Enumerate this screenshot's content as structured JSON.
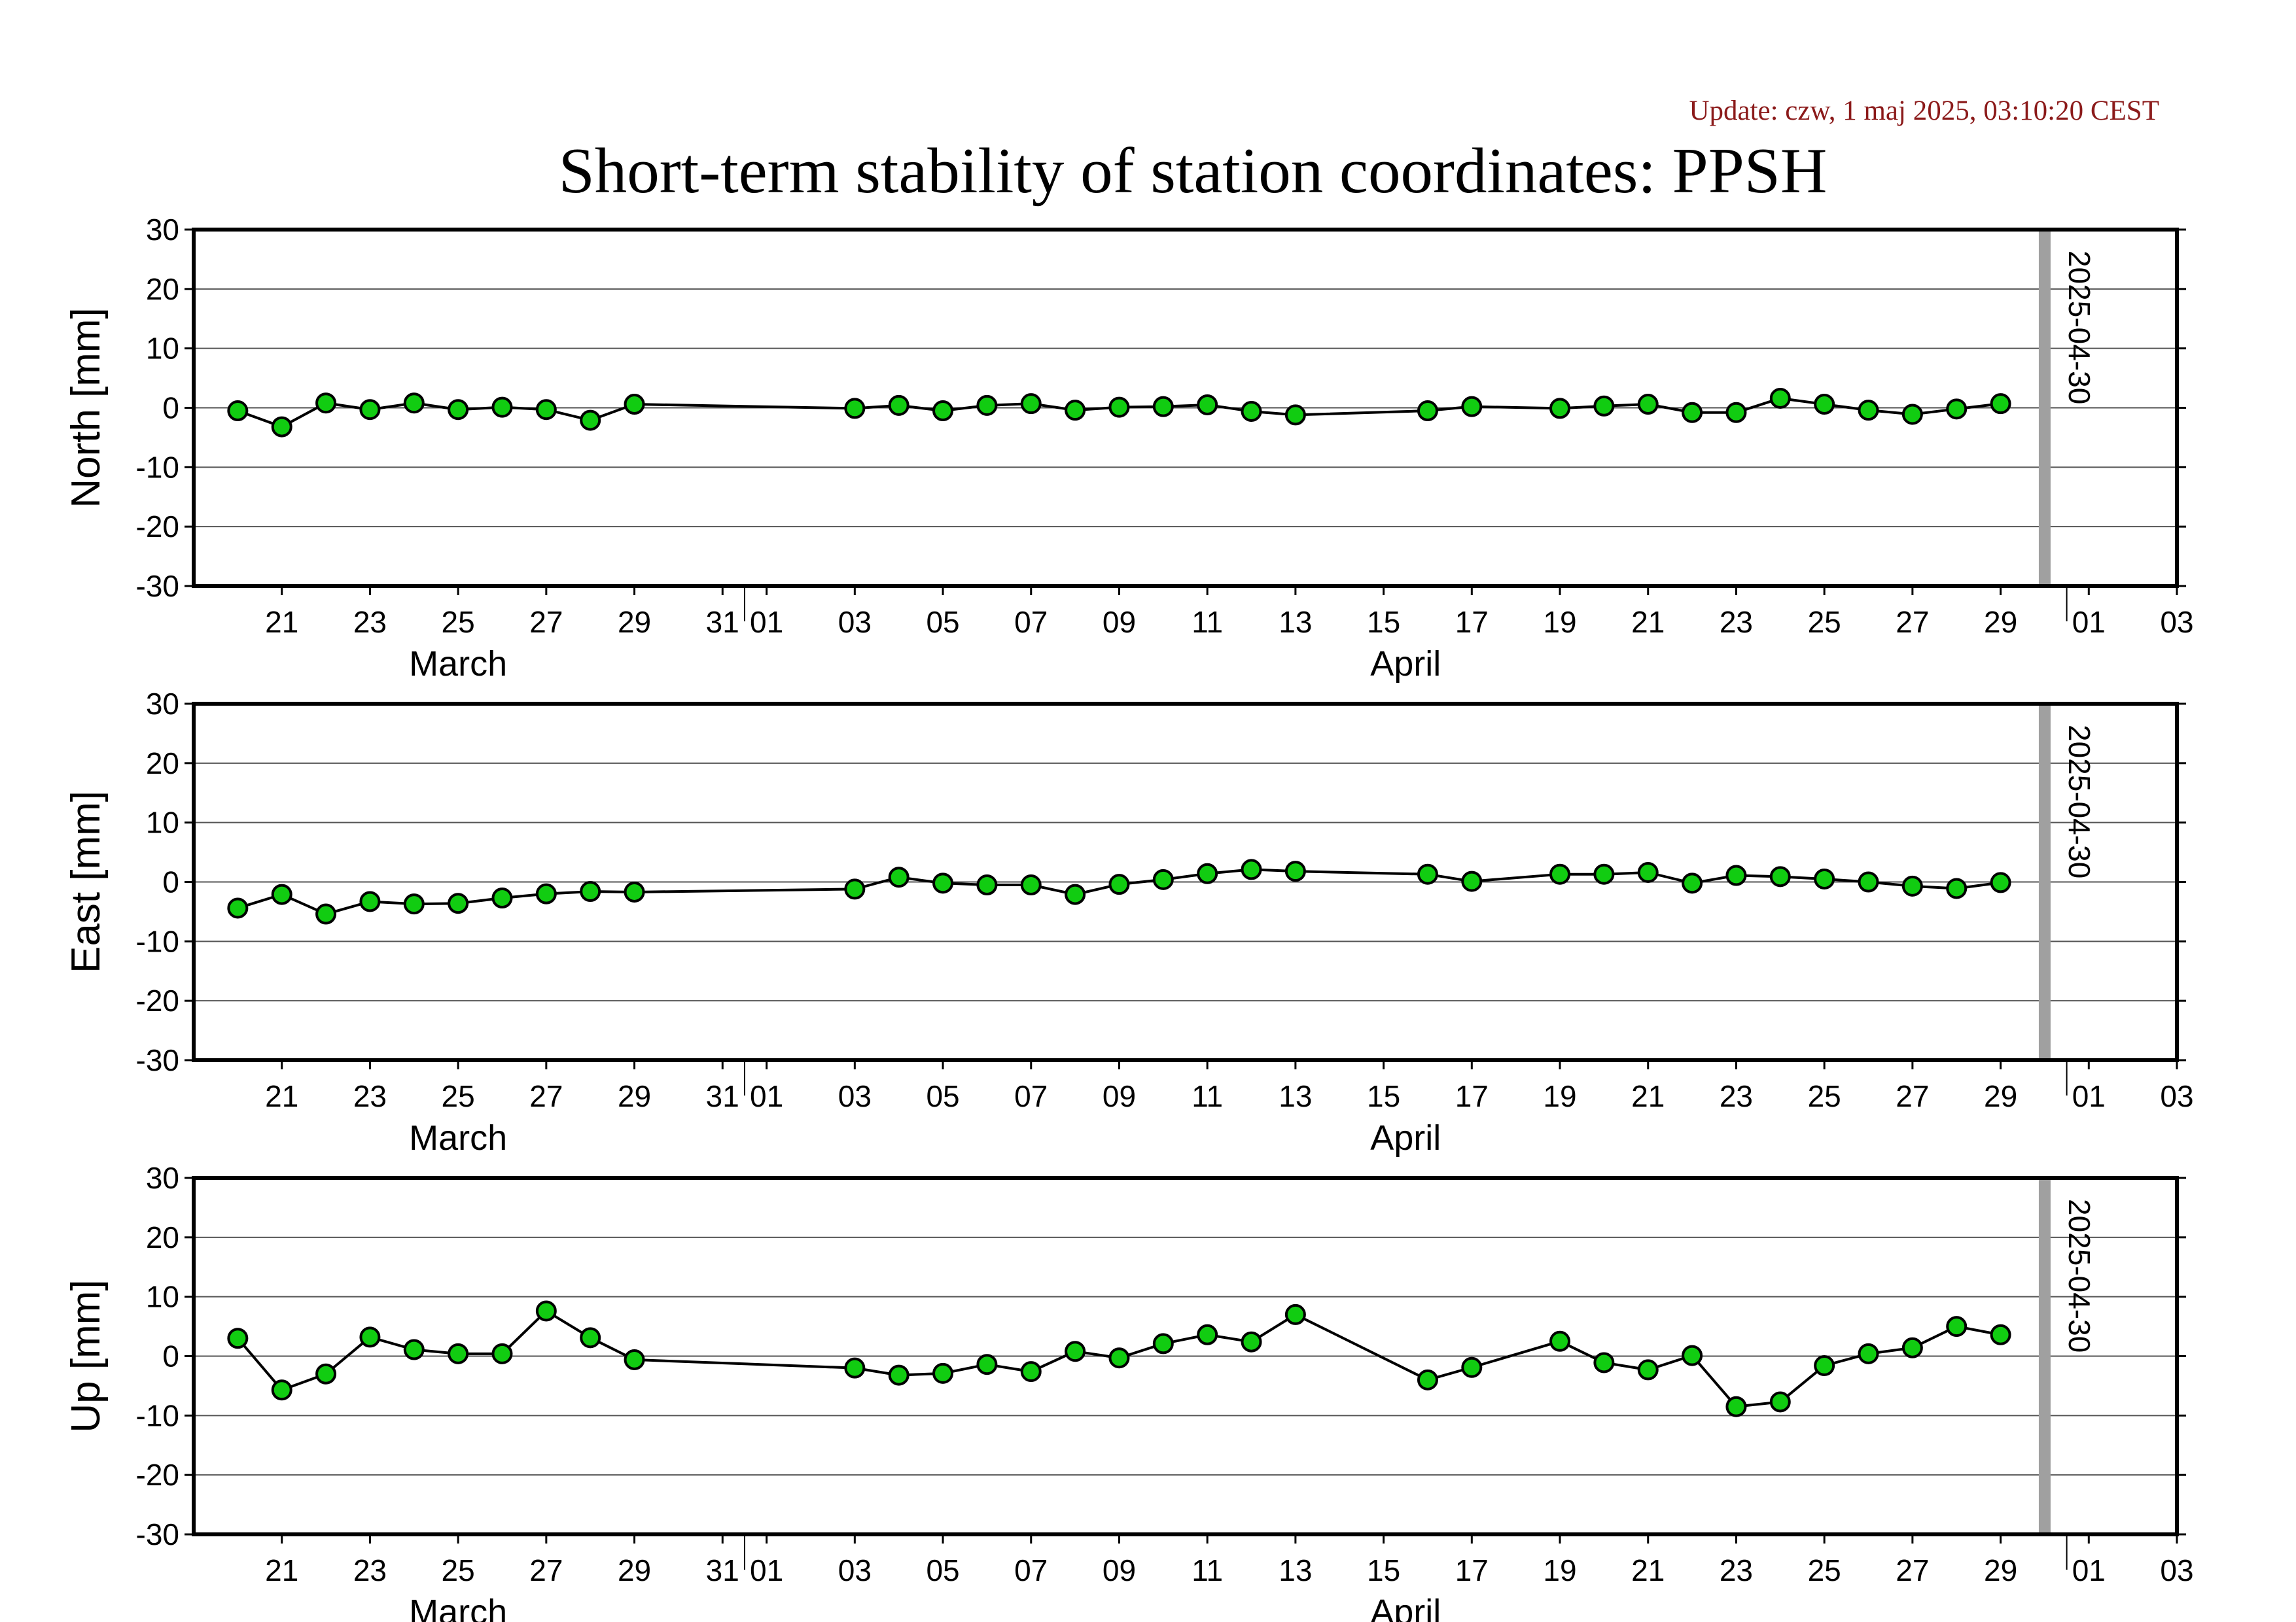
{
  "update_text": "Update: czw, 1 maj 2025, 03:10:20 CEST",
  "update_color": "#8b1a1a",
  "title": "Short-term stability of station coordinates: PPSH",
  "colors": {
    "marker_fill": "#11cc11",
    "marker_stroke": "#000000",
    "line": "#000000",
    "grid": "#555555",
    "marker_line": "#a0a0a0"
  },
  "chart_data": [
    {
      "type": "line",
      "ylabel": "North [mm]",
      "ylim": [
        -30,
        30
      ],
      "yticks": [
        "30",
        "20",
        "10",
        "0",
        "-10",
        "-20",
        "-30"
      ],
      "xlim": [
        "2025-03-19T12:00",
        "2025-05-03T12:00"
      ],
      "xticks": [
        "21",
        "23",
        "25",
        "27",
        "29",
        "31",
        "01",
        "03",
        "05",
        "07",
        "09",
        "11",
        "13",
        "15",
        "17",
        "19",
        "21",
        "23",
        "25",
        "27",
        "29",
        "01",
        "03"
      ],
      "months": [
        "March",
        "April"
      ],
      "marker_line": {
        "date": "2025-04-30",
        "label": "2025-04-30"
      },
      "grid": true,
      "series": [
        {
          "x": [
            "2025-03-20",
            "2025-03-21",
            "2025-03-22",
            "2025-03-23",
            "2025-03-24",
            "2025-03-25",
            "2025-03-26",
            "2025-03-27",
            "2025-03-28",
            "2025-03-29",
            "2025-04-03",
            "2025-04-04",
            "2025-04-05",
            "2025-04-06",
            "2025-04-07",
            "2025-04-08",
            "2025-04-09",
            "2025-04-10",
            "2025-04-11",
            "2025-04-12",
            "2025-04-13",
            "2025-04-16",
            "2025-04-17",
            "2025-04-19",
            "2025-04-20",
            "2025-04-21",
            "2025-04-22",
            "2025-04-23",
            "2025-04-24",
            "2025-04-25",
            "2025-04-26",
            "2025-04-27",
            "2025-04-28",
            "2025-04-29"
          ],
          "y": [
            -0.5,
            -3.2,
            0.8,
            -0.3,
            0.8,
            -0.3,
            0.1,
            -0.3,
            -2.1,
            0.6,
            -0.1,
            0.4,
            -0.5,
            0.4,
            0.7,
            -0.4,
            0.1,
            0.2,
            0.5,
            -0.6,
            -1.2,
            -0.5,
            0.2,
            -0.1,
            0.3,
            0.6,
            -0.8,
            -0.8,
            1.6,
            0.6,
            -0.4,
            -1.1,
            -0.2,
            0.7
          ]
        }
      ]
    },
    {
      "type": "line",
      "ylabel": "East [mm]",
      "ylim": [
        -30,
        30
      ],
      "yticks": [
        "30",
        "20",
        "10",
        "0",
        "-10",
        "-20",
        "-30"
      ],
      "xlim": [
        "2025-03-19T12:00",
        "2025-05-03T12:00"
      ],
      "xticks": [
        "21",
        "23",
        "25",
        "27",
        "29",
        "31",
        "01",
        "03",
        "05",
        "07",
        "09",
        "11",
        "13",
        "15",
        "17",
        "19",
        "21",
        "23",
        "25",
        "27",
        "29",
        "01",
        "03"
      ],
      "months": [
        "March",
        "April"
      ],
      "marker_line": {
        "date": "2025-04-30",
        "label": "2025-04-30"
      },
      "grid": true,
      "series": [
        {
          "x": [
            "2025-03-20",
            "2025-03-21",
            "2025-03-22",
            "2025-03-23",
            "2025-03-24",
            "2025-03-25",
            "2025-03-26",
            "2025-03-27",
            "2025-03-28",
            "2025-03-29",
            "2025-04-03",
            "2025-04-04",
            "2025-04-05",
            "2025-04-06",
            "2025-04-07",
            "2025-04-08",
            "2025-04-09",
            "2025-04-10",
            "2025-04-11",
            "2025-04-12",
            "2025-04-13",
            "2025-04-16",
            "2025-04-17",
            "2025-04-19",
            "2025-04-20",
            "2025-04-21",
            "2025-04-22",
            "2025-04-23",
            "2025-04-24",
            "2025-04-25",
            "2025-04-26",
            "2025-04-27",
            "2025-04-28",
            "2025-04-29"
          ],
          "y": [
            -4.4,
            -2.1,
            -5.4,
            -3.3,
            -3.7,
            -3.6,
            -2.7,
            -2.0,
            -1.6,
            -1.7,
            -1.2,
            0.8,
            -0.2,
            -0.5,
            -0.5,
            -2.1,
            -0.4,
            0.4,
            1.4,
            2.1,
            1.8,
            1.3,
            0.1,
            1.3,
            1.3,
            1.6,
            -0.2,
            1.1,
            0.9,
            0.5,
            0.0,
            -0.7,
            -1.1,
            -0.1
          ]
        }
      ]
    },
    {
      "type": "line",
      "ylabel": "Up [mm]",
      "ylim": [
        -30,
        30
      ],
      "yticks": [
        "30",
        "20",
        "10",
        "0",
        "-10",
        "-20",
        "-30"
      ],
      "xlim": [
        "2025-03-19T12:00",
        "2025-05-03T12:00"
      ],
      "xticks": [
        "21",
        "23",
        "25",
        "27",
        "29",
        "31",
        "01",
        "03",
        "05",
        "07",
        "09",
        "11",
        "13",
        "15",
        "17",
        "19",
        "21",
        "23",
        "25",
        "27",
        "29",
        "01",
        "03"
      ],
      "months": [
        "March",
        "April"
      ],
      "marker_line": {
        "date": "2025-04-30",
        "label": "2025-04-30"
      },
      "grid": true,
      "series": [
        {
          "x": [
            "2025-03-20",
            "2025-03-21",
            "2025-03-22",
            "2025-03-23",
            "2025-03-24",
            "2025-03-25",
            "2025-03-26",
            "2025-03-27",
            "2025-03-28",
            "2025-03-29",
            "2025-04-03",
            "2025-04-04",
            "2025-04-05",
            "2025-04-06",
            "2025-04-07",
            "2025-04-08",
            "2025-04-09",
            "2025-04-10",
            "2025-04-11",
            "2025-04-12",
            "2025-04-13",
            "2025-04-16",
            "2025-04-17",
            "2025-04-19",
            "2025-04-20",
            "2025-04-21",
            "2025-04-22",
            "2025-04-23",
            "2025-04-24",
            "2025-04-25",
            "2025-04-26",
            "2025-04-27",
            "2025-04-28",
            "2025-04-29"
          ],
          "y": [
            3.0,
            -5.7,
            -3.0,
            3.2,
            1.1,
            0.4,
            0.4,
            7.6,
            3.1,
            -0.6,
            -2.0,
            -3.2,
            -2.9,
            -1.4,
            -2.6,
            0.8,
            -0.3,
            2.1,
            3.6,
            2.4,
            7.0,
            -4.0,
            -1.9,
            2.5,
            -1.1,
            -2.3,
            0.1,
            -8.5,
            -7.7,
            -1.6,
            0.4,
            1.4,
            5.0,
            3.6
          ]
        }
      ]
    }
  ]
}
